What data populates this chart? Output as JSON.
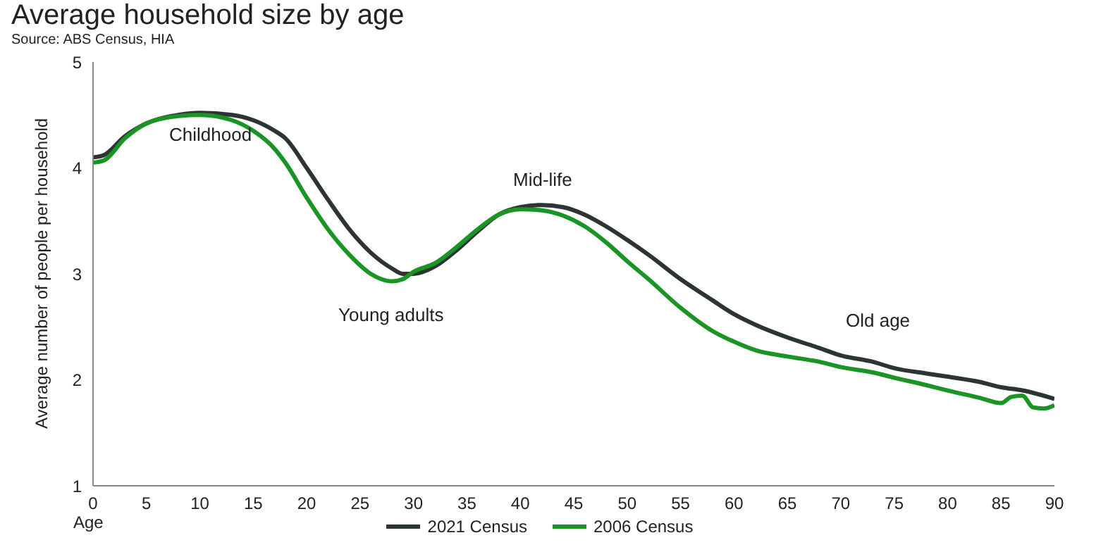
{
  "chart_data": {
    "type": "line",
    "title": "Average household size by age",
    "subtitle": "Source: ABS Census, HIA",
    "xlabel": "Age",
    "ylabel": "Average number of people per household",
    "xlim": [
      0,
      90
    ],
    "xticks": [
      0,
      5,
      10,
      15,
      20,
      25,
      30,
      35,
      40,
      45,
      50,
      55,
      60,
      65,
      70,
      75,
      80,
      85,
      90
    ],
    "ylim": [
      1,
      5
    ],
    "yticks": [
      1,
      2,
      3,
      4,
      5
    ],
    "grid": false,
    "legend": "bottom",
    "marker": "none",
    "line_style": "solid",
    "series": [
      {
        "name": "2021 Census",
        "color": "#2d3436",
        "x": [
          0,
          1,
          3,
          5,
          8,
          10,
          13,
          15,
          17,
          18,
          20,
          22,
          24,
          26,
          28,
          29,
          30,
          32,
          34,
          36,
          38,
          40,
          42,
          44,
          46,
          48,
          50,
          52,
          55,
          58,
          60,
          62,
          65,
          68,
          70,
          73,
          75,
          78,
          80,
          83,
          85,
          87,
          90
        ],
        "values": [
          4.1,
          4.12,
          4.3,
          4.42,
          4.5,
          4.52,
          4.5,
          4.45,
          4.35,
          4.28,
          4.0,
          3.7,
          3.42,
          3.2,
          3.05,
          3.0,
          3.0,
          3.07,
          3.22,
          3.4,
          3.56,
          3.63,
          3.65,
          3.63,
          3.56,
          3.45,
          3.32,
          3.18,
          2.95,
          2.75,
          2.62,
          2.52,
          2.4,
          2.3,
          2.23,
          2.17,
          2.11,
          2.06,
          2.03,
          1.98,
          1.93,
          1.9,
          1.82
        ]
      },
      {
        "name": "2006 Census",
        "color": "#1a9424",
        "x": [
          0,
          1,
          3,
          5,
          8,
          10,
          13,
          15,
          17,
          18,
          20,
          22,
          24,
          26,
          27,
          28,
          29,
          30,
          32,
          34,
          36,
          38,
          40,
          42,
          44,
          46,
          48,
          50,
          52,
          55,
          58,
          60,
          62,
          65,
          68,
          70,
          73,
          75,
          78,
          80,
          83,
          85,
          86,
          87,
          88,
          89,
          90
        ],
        "values": [
          4.05,
          4.07,
          4.28,
          4.42,
          4.49,
          4.5,
          4.45,
          4.35,
          4.18,
          4.05,
          3.72,
          3.42,
          3.18,
          3.0,
          2.95,
          2.93,
          2.95,
          3.02,
          3.1,
          3.25,
          3.42,
          3.56,
          3.61,
          3.6,
          3.55,
          3.45,
          3.3,
          3.12,
          2.95,
          2.68,
          2.46,
          2.36,
          2.28,
          2.22,
          2.17,
          2.12,
          2.07,
          2.02,
          1.95,
          1.9,
          1.83,
          1.78,
          1.84,
          1.85,
          1.74,
          1.73,
          1.76
        ]
      }
    ],
    "annotations": [
      "Childhood",
      "Young adults",
      "Mid-life",
      "Old age"
    ]
  }
}
